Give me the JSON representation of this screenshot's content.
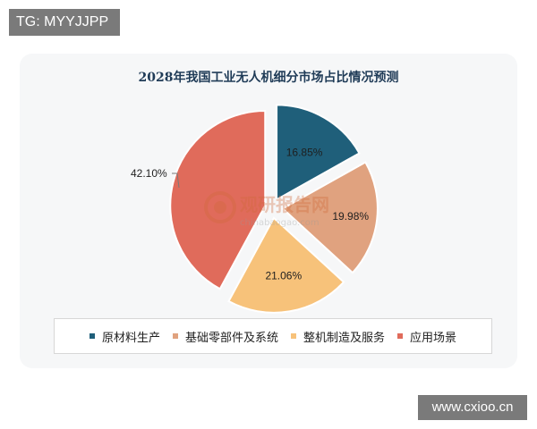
{
  "header_tag": "TG: MYYJJPP",
  "footer_tag": "www.cxioo.cn",
  "watermark": {
    "name": "观研报告网",
    "url": "chinabaogao.com"
  },
  "chart_data": {
    "type": "pie",
    "title": "2028年我国工业无人机细分市场占比情况预测",
    "legend_position": "bottom",
    "slices": [
      {
        "name": "原材料生产",
        "value": 16.85,
        "label": "16.85%",
        "color": "#1f5f7a"
      },
      {
        "name": "基础零部件及系统",
        "value": 19.98,
        "label": "19.98%",
        "color": "#e0a27f"
      },
      {
        "name": "整机制造及服务",
        "value": 21.06,
        "label": "21.06%",
        "color": "#f7c27a"
      },
      {
        "name": "应用场景",
        "value": 42.1,
        "label": "42.10%",
        "color": "#e06b5b"
      }
    ]
  }
}
